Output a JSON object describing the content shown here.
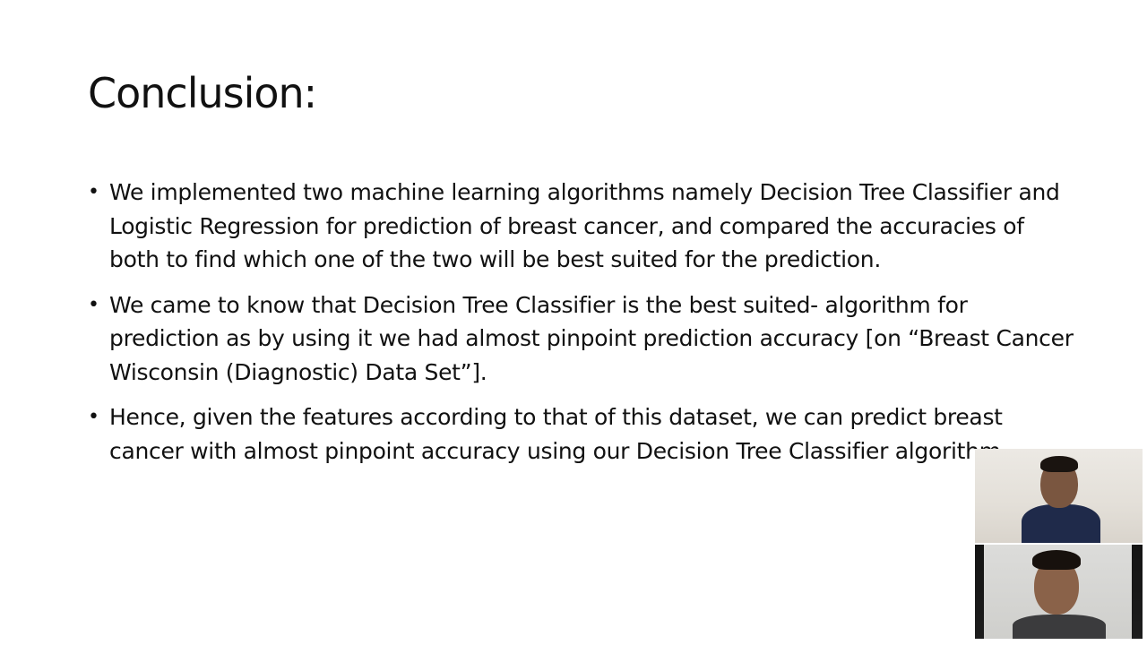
{
  "slide": {
    "title": "Conclusion:",
    "bullets": [
      "We implemented two machine learning algorithms namely Decision Tree Classifier and Logistic Regression for prediction of breast cancer, and compared the accuracies of both to find which one of the two will be best suited for the prediction.",
      "We came to know that Decision Tree Classifier is the best suited- algorithm for prediction as by using it we had almost pinpoint prediction accuracy [on “Breast Cancer Wisconsin (Diagnostic) Data Set”].",
      "Hence, given the features according to that of this dataset, we can predict breast cancer with almost pinpoint accuracy using our Decision Tree Classifier algorithm."
    ]
  },
  "video_feeds": [
    {
      "label": "presenter-1"
    },
    {
      "label": "presenter-2"
    }
  ],
  "colors": {
    "background": "#ffffff",
    "text": "#111111"
  }
}
